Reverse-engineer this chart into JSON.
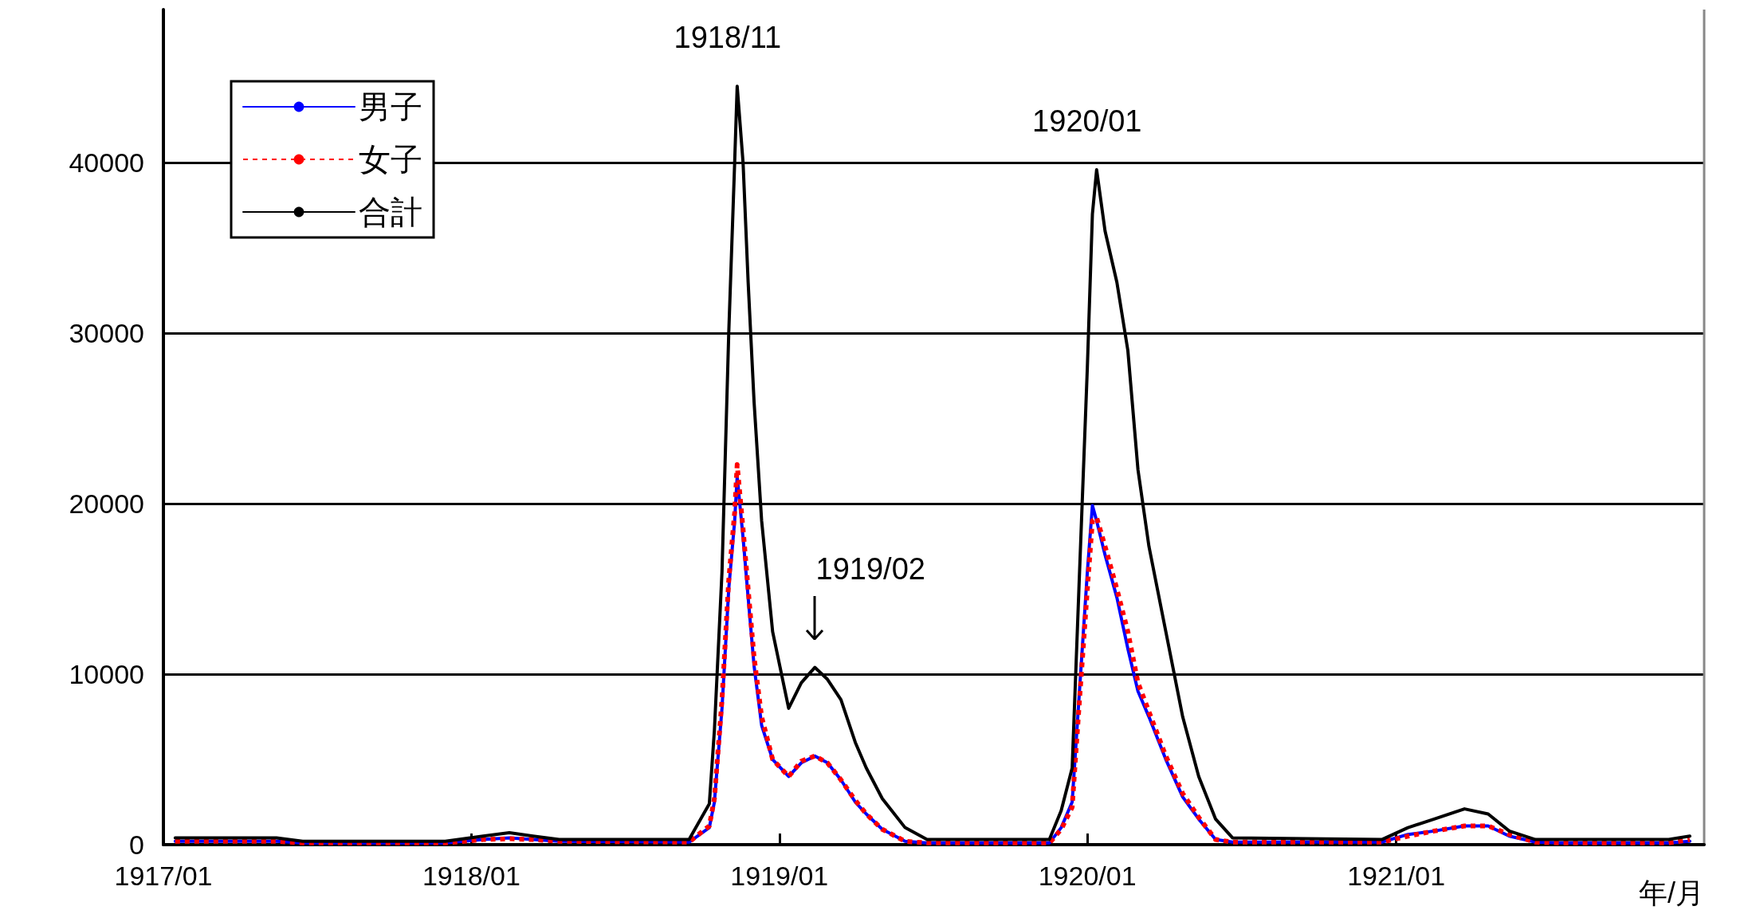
{
  "chart_data": {
    "type": "line",
    "xlabel": "年/月",
    "xlim": [
      "1917-01-01",
      "1922-01-01"
    ],
    "xticks": [
      {
        "value": "1917-01-01",
        "label": "1917/01"
      },
      {
        "value": "1918-01-01",
        "label": "1918/01"
      },
      {
        "value": "1919-01-01",
        "label": "1919/01"
      },
      {
        "value": "1920-01-01",
        "label": "1920/01"
      },
      {
        "value": "1921-01-01",
        "label": "1921/01"
      }
    ],
    "ylim": [
      0,
      49000
    ],
    "yticks": [
      0,
      10000,
      20000,
      30000,
      40000
    ],
    "grid": "y",
    "legend": "top left",
    "marker": "none",
    "x": [
      "1917-01-15",
      "1917-05-15",
      "1917-06-15",
      "1917-12-01",
      "1918-01-15",
      "1918-02-15",
      "1918-03-15",
      "1918-04-15",
      "1918-09-16",
      "1918-10-10",
      "1918-10-16",
      "1918-10-25",
      "1918-11-02",
      "1918-11-09",
      "1918-11-12",
      "1918-11-19",
      "1918-11-25",
      "1918-12-02",
      "1918-12-11",
      "1918-12-24",
      "1919-01-12",
      "1919-01-27",
      "1919-02-12",
      "1919-02-27",
      "1919-03-15",
      "1919-04-01",
      "1919-04-14",
      "1919-05-03",
      "1919-05-30",
      "1919-06-25",
      "1919-11-17",
      "1919-12-01",
      "1919-12-14",
      "1919-12-22",
      "1920-01-01",
      "1920-01-07",
      "1920-01-12",
      "1920-01-22",
      "1920-02-05",
      "1920-02-18",
      "1920-03-01",
      "1920-03-14",
      "1920-04-03",
      "1920-04-23",
      "1920-05-12",
      "1920-06-01",
      "1920-06-21",
      "1920-12-15",
      "1921-01-15",
      "1921-02-15",
      "1921-03-23",
      "1921-04-20",
      "1921-05-15",
      "1921-06-15",
      "1921-07-15",
      "1921-11-20",
      "1921-12-15"
    ],
    "series": [
      {
        "name": "男子",
        "color": "#0000ff",
        "line_style": "solid",
        "values": [
          200,
          200,
          100,
          100,
          300,
          400,
          300,
          200,
          150,
          1000,
          2500,
          8000,
          15000,
          19000,
          21600,
          18000,
          14500,
          10500,
          7000,
          5000,
          4000,
          4800,
          5200,
          4800,
          3800,
          2500,
          1800,
          900,
          200,
          100,
          100,
          1000,
          2500,
          8500,
          16000,
          19900,
          19000,
          17000,
          14500,
          11500,
          9000,
          7500,
          5000,
          2800,
          1500,
          300,
          150,
          150,
          600,
          800,
          1100,
          1100,
          500,
          150,
          100,
          100,
          200
        ]
      },
      {
        "name": "女子",
        "color": "#ff0000",
        "line_style": "dotted",
        "values": [
          200,
          200,
          100,
          100,
          300,
          350,
          300,
          200,
          150,
          1100,
          2700,
          8500,
          15500,
          19500,
          22300,
          18500,
          15000,
          11000,
          7500,
          5000,
          4000,
          4900,
          5200,
          4800,
          3800,
          2600,
          1800,
          900,
          200,
          100,
          100,
          900,
          2200,
          8000,
          15000,
          19000,
          19200,
          17500,
          15000,
          12500,
          9500,
          7800,
          5200,
          3000,
          1600,
          300,
          150,
          150,
          500,
          800,
          1100,
          1100,
          600,
          150,
          100,
          100,
          300
        ]
      },
      {
        "name": "合計",
        "color": "#000000",
        "line_style": "solid",
        "values": [
          400,
          400,
          200,
          200,
          500,
          700,
          500,
          300,
          300,
          2400,
          6700,
          16000,
          30000,
          40000,
          44500,
          40000,
          33000,
          26000,
          19000,
          12500,
          8000,
          9500,
          10400,
          9700,
          8500,
          6000,
          4500,
          2700,
          1000,
          300,
          300,
          2000,
          4500,
          15000,
          28000,
          37000,
          39600,
          36000,
          33000,
          29000,
          22000,
          17500,
          12500,
          7500,
          4000,
          1500,
          400,
          300,
          1000,
          1500,
          2100,
          1800,
          800,
          300,
          300,
          300,
          500
        ]
      }
    ],
    "annotations": [
      {
        "text": "1918/11",
        "x": "1918-11-12",
        "y": 44500
      },
      {
        "text": "1919/02",
        "x": "1919-02-12",
        "y": 10400
      },
      {
        "text": "1920/01",
        "x": "1920-01-12",
        "y": 39600
      }
    ]
  }
}
